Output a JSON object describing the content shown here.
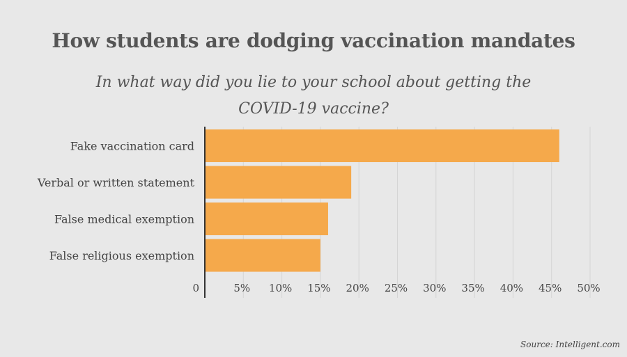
{
  "title": "How students are dodging vaccination mandates",
  "subtitle": "In what way did you lie to your school about getting the COVID-19 vaccine?",
  "source": "Source: Intelligent.com",
  "colors": {
    "bar": "#f5a94b",
    "background": "#e8e8e8",
    "grid": "#d5d5d5",
    "axis": "#333333",
    "text": "#444444"
  },
  "chart_data": {
    "type": "bar",
    "orientation": "horizontal",
    "categories": [
      "Fake vaccination card",
      "Verbal or written statement",
      "False medical exemption",
      "False religious exemption"
    ],
    "values": [
      46,
      19,
      16,
      15
    ],
    "xlim": [
      0,
      50
    ],
    "xticks": [
      0,
      5,
      10,
      15,
      20,
      25,
      30,
      35,
      40,
      45,
      50
    ],
    "xtick_labels": [
      "0",
      "5%",
      "10%",
      "15%",
      "20%",
      "25%",
      "30%",
      "35%",
      "40%",
      "45%",
      "50%"
    ],
    "grid": true,
    "legend": false
  }
}
